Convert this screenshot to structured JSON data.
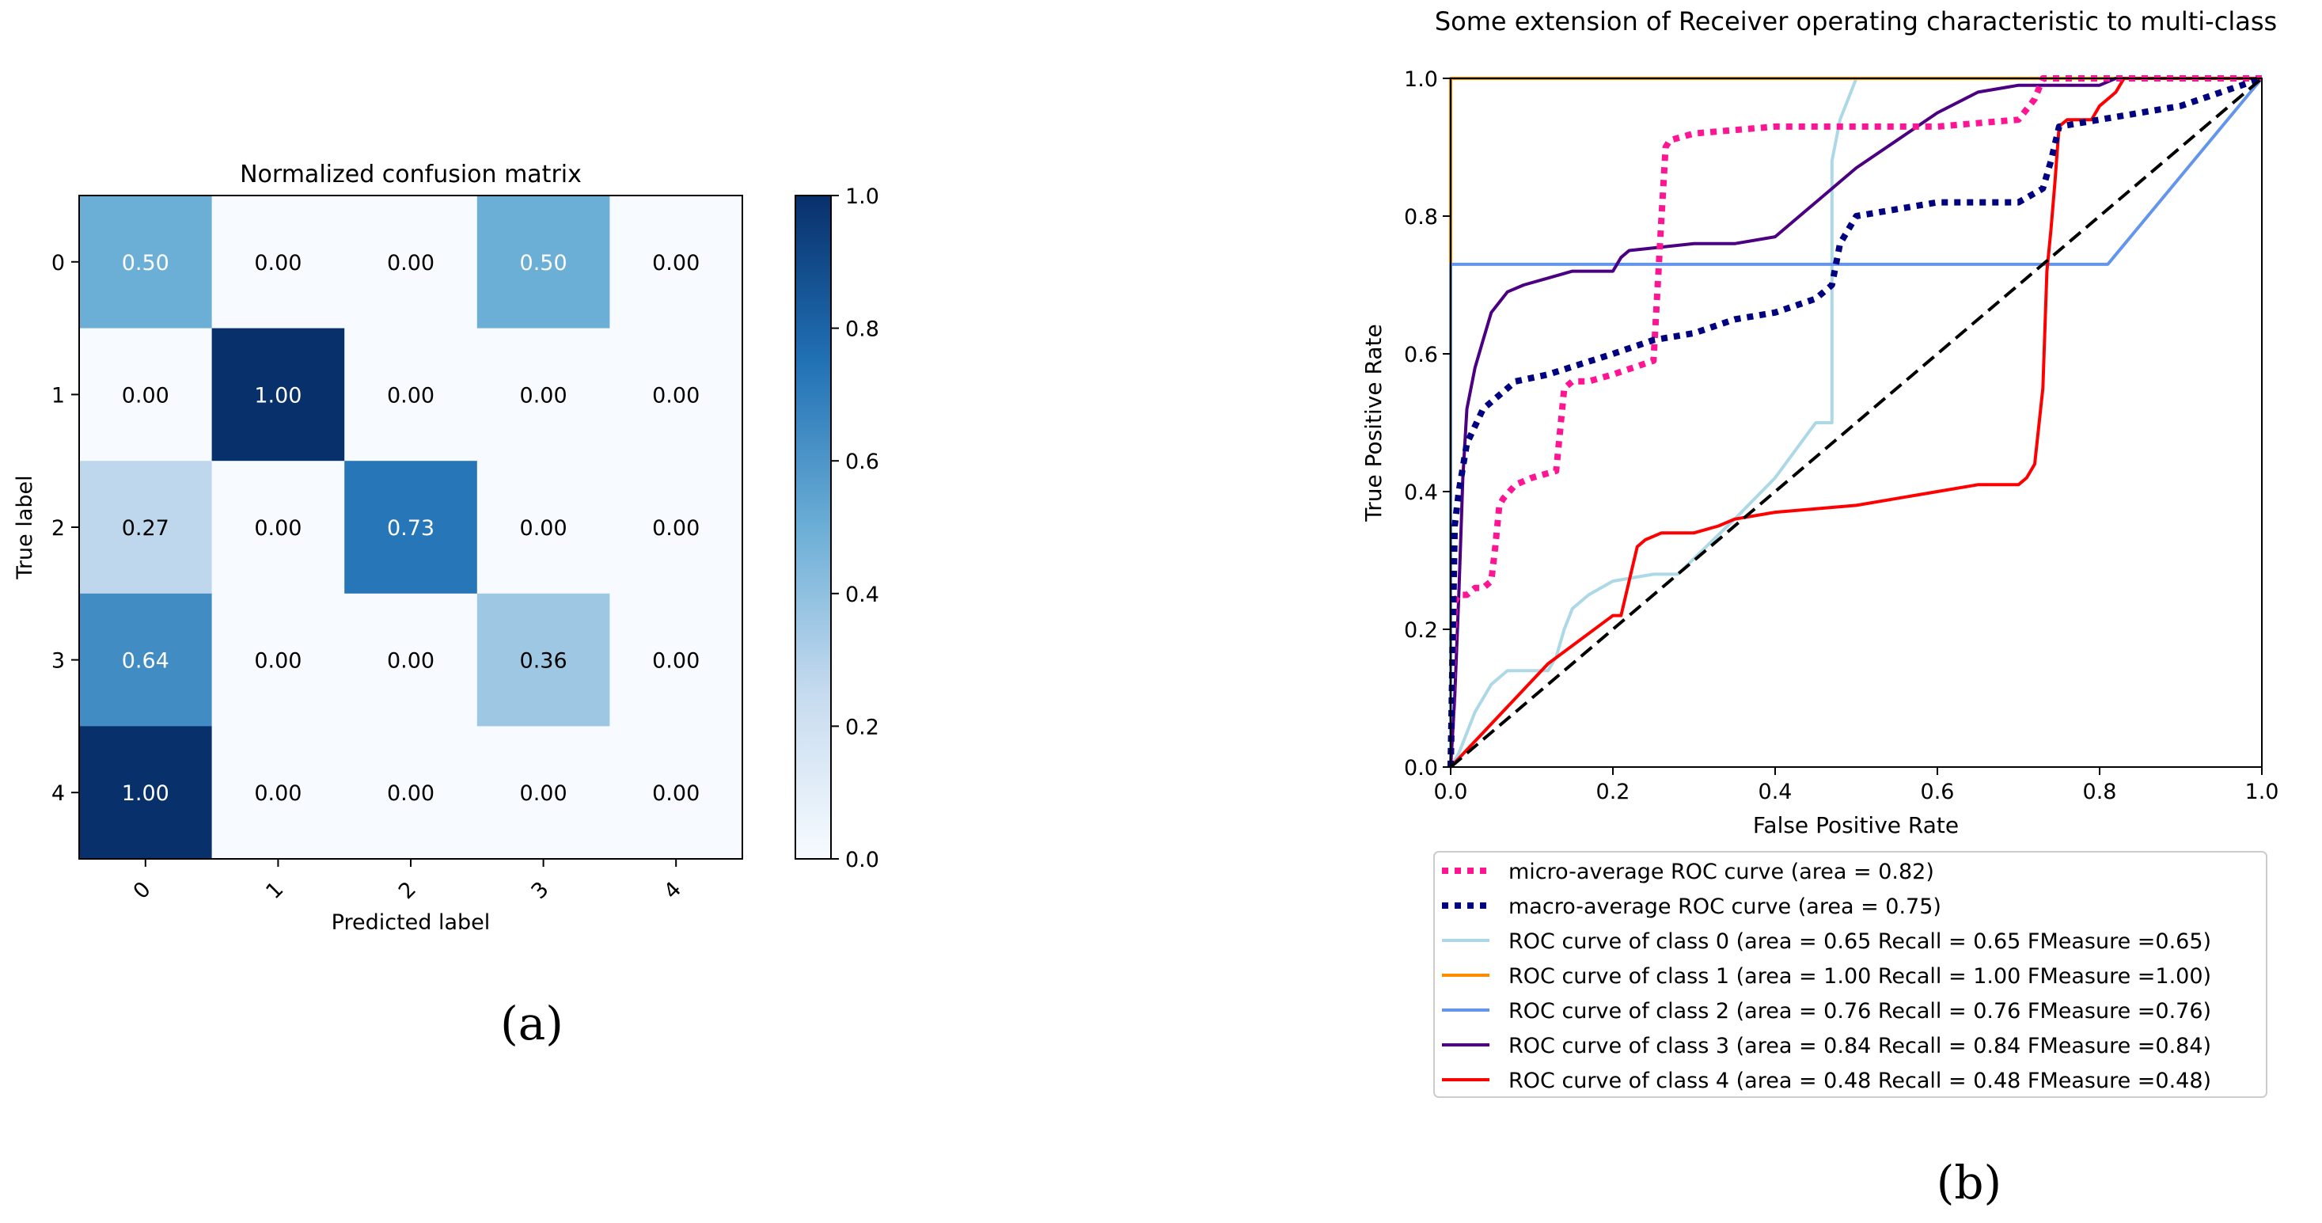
{
  "chart_data": [
    {
      "type": "heatmap",
      "title": "Normalized confusion matrix",
      "xlabel": "Predicted label",
      "ylabel": "True label",
      "x_categories": [
        "0",
        "1",
        "2",
        "3",
        "4"
      ],
      "y_categories": [
        "0",
        "1",
        "2",
        "3",
        "4"
      ],
      "values": [
        [
          0.5,
          0.0,
          0.0,
          0.5,
          0.0
        ],
        [
          0.0,
          1.0,
          0.0,
          0.0,
          0.0
        ],
        [
          0.27,
          0.0,
          0.73,
          0.0,
          0.0
        ],
        [
          0.64,
          0.0,
          0.0,
          0.36,
          0.0
        ],
        [
          1.0,
          0.0,
          0.0,
          0.0,
          0.0
        ]
      ],
      "colormap": "Blues",
      "colorbar_range": [
        0.0,
        1.0
      ],
      "colorbar_ticks": [
        "0.0",
        "0.2",
        "0.4",
        "0.6",
        "0.8",
        "1.0"
      ],
      "panel_label": "(a)"
    },
    {
      "type": "line",
      "title": "Some extension of Receiver operating characteristic to multi-class",
      "xlabel": "False Positive Rate",
      "ylabel": "True Positive Rate",
      "xlim": [
        0.0,
        1.0
      ],
      "ylim": [
        0.0,
        1.0
      ],
      "x_ticks": [
        "0.0",
        "0.2",
        "0.4",
        "0.6",
        "0.8",
        "1.0"
      ],
      "y_ticks": [
        "0.0",
        "0.2",
        "0.4",
        "0.6",
        "0.8",
        "1.0"
      ],
      "legend_position": "below",
      "panel_label": "(b)",
      "series": [
        {
          "name": "micro-average ROC curve (area = 0.82)",
          "color": "#ff1493",
          "style": "dotted",
          "width": 4,
          "x": [
            0,
            0.005,
            0.01,
            0.02,
            0.03,
            0.04,
            0.05,
            0.055,
            0.06,
            0.065,
            0.08,
            0.1,
            0.13,
            0.14,
            0.15,
            0.17,
            0.2,
            0.25,
            0.26,
            0.265,
            0.27,
            0.3,
            0.35,
            0.4,
            0.45,
            0.5,
            0.6,
            0.7,
            0.72,
            0.73,
            0.75,
            1.0
          ],
          "y": [
            0,
            0.24,
            0.25,
            0.25,
            0.26,
            0.26,
            0.27,
            0.32,
            0.38,
            0.39,
            0.41,
            0.42,
            0.43,
            0.55,
            0.56,
            0.56,
            0.57,
            0.59,
            0.8,
            0.9,
            0.91,
            0.92,
            0.925,
            0.93,
            0.93,
            0.93,
            0.93,
            0.94,
            0.97,
            1.0,
            1.0,
            1.0
          ]
        },
        {
          "name": "macro-average ROC curve (area = 0.75)",
          "color": "#000080",
          "style": "dotted",
          "width": 4,
          "x": [
            0,
            0.005,
            0.01,
            0.02,
            0.04,
            0.08,
            0.12,
            0.2,
            0.25,
            0.3,
            0.35,
            0.4,
            0.45,
            0.47,
            0.48,
            0.5,
            0.6,
            0.7,
            0.73,
            0.74,
            0.75,
            0.8,
            0.9,
            1.0
          ],
          "y": [
            0,
            0.35,
            0.4,
            0.47,
            0.52,
            0.56,
            0.57,
            0.6,
            0.62,
            0.63,
            0.65,
            0.66,
            0.68,
            0.7,
            0.76,
            0.8,
            0.82,
            0.82,
            0.84,
            0.88,
            0.93,
            0.94,
            0.96,
            1.0
          ]
        },
        {
          "name": "ROC curve of class 0 (area = 0.65  Recall = 0.65 FMeasure =0.65)",
          "color": "#add8e6",
          "style": "solid",
          "width": 4,
          "x": [
            0,
            0.01,
            0.03,
            0.05,
            0.07,
            0.1,
            0.12,
            0.13,
            0.14,
            0.15,
            0.17,
            0.2,
            0.25,
            0.28,
            0.35,
            0.4,
            0.45,
            0.47,
            0.47,
            0.48,
            0.49,
            0.5,
            0.55,
            0.6,
            0.7,
            0.8,
            1.0
          ],
          "y": [
            0,
            0.02,
            0.08,
            0.12,
            0.14,
            0.14,
            0.14,
            0.16,
            0.2,
            0.23,
            0.25,
            0.27,
            0.28,
            0.28,
            0.36,
            0.42,
            0.5,
            0.5,
            0.88,
            0.94,
            0.97,
            1.0,
            1.0,
            1.0,
            1.0,
            1.0,
            1.0
          ]
        },
        {
          "name": "ROC curve of class 1 (area = 1.00  Recall = 1.00 FMeasure =1.00)",
          "color": "#ff8c00",
          "style": "solid",
          "width": 4,
          "x": [
            0,
            0,
            1.0
          ],
          "y": [
            0,
            1.0,
            1.0
          ]
        },
        {
          "name": "ROC curve of class 2 (area = 0.76  Recall = 0.76 FMeasure =0.76)",
          "color": "#6495ed",
          "style": "solid",
          "width": 4,
          "x": [
            0,
            0,
            0.81,
            1.0
          ],
          "y": [
            0,
            0.73,
            0.73,
            1.0
          ]
        },
        {
          "name": "ROC curve of class 3 (area = 0.84  Recall = 0.84 FMeasure =0.84)",
          "color": "#4b0082",
          "style": "solid",
          "width": 4,
          "x": [
            0,
            0.005,
            0.01,
            0.015,
            0.02,
            0.03,
            0.04,
            0.05,
            0.07,
            0.09,
            0.12,
            0.15,
            0.2,
            0.21,
            0.22,
            0.3,
            0.35,
            0.4,
            0.45,
            0.5,
            0.55,
            0.6,
            0.65,
            0.7,
            0.75,
            0.8,
            0.82,
            0.85,
            1.0
          ],
          "y": [
            0,
            0.1,
            0.25,
            0.42,
            0.52,
            0.58,
            0.62,
            0.66,
            0.69,
            0.7,
            0.71,
            0.72,
            0.72,
            0.74,
            0.75,
            0.76,
            0.76,
            0.77,
            0.82,
            0.87,
            0.91,
            0.95,
            0.98,
            0.99,
            0.99,
            0.99,
            1.0,
            1.0,
            1.0
          ]
        },
        {
          "name": "ROC curve of class 4 (area = 0.48  Recall = 0.48 FMeasure =0.48)",
          "color": "#ff0000",
          "style": "solid",
          "width": 4,
          "x": [
            0,
            0.12,
            0.2,
            0.21,
            0.22,
            0.23,
            0.24,
            0.26,
            0.3,
            0.33,
            0.35,
            0.4,
            0.45,
            0.5,
            0.55,
            0.6,
            0.65,
            0.7,
            0.71,
            0.72,
            0.73,
            0.735,
            0.74,
            0.745,
            0.75,
            0.76,
            0.79,
            0.8,
            0.81,
            0.82,
            0.83,
            1.0
          ],
          "y": [
            0,
            0.15,
            0.22,
            0.22,
            0.27,
            0.32,
            0.33,
            0.34,
            0.34,
            0.35,
            0.36,
            0.37,
            0.375,
            0.38,
            0.39,
            0.4,
            0.41,
            0.41,
            0.42,
            0.44,
            0.55,
            0.72,
            0.78,
            0.85,
            0.93,
            0.94,
            0.94,
            0.96,
            0.97,
            0.98,
            1.0,
            1.0
          ]
        },
        {
          "name": "",
          "color": "#000000",
          "style": "dashed",
          "width": 4,
          "x": [
            0,
            1.0
          ],
          "y": [
            0,
            1.0
          ]
        }
      ]
    }
  ]
}
